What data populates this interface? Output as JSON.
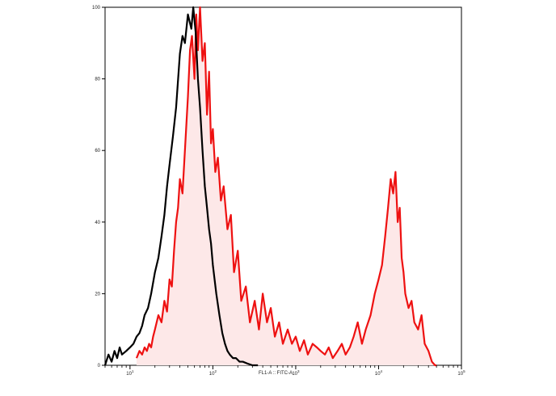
{
  "chart_data": {
    "type": "area",
    "title": "",
    "xlabel": "FL1-A :: FITC-A",
    "ylabel": "",
    "x_scale": "log",
    "xlim": [
      5,
      100000
    ],
    "ylim": [
      0,
      100
    ],
    "x_ticks": [
      {
        "value": 10,
        "base": "10",
        "exp": "1"
      },
      {
        "value": 100,
        "base": "10",
        "exp": "2"
      },
      {
        "value": 1000,
        "base": "10",
        "exp": "3"
      },
      {
        "value": 10000,
        "base": "10",
        "exp": "4"
      },
      {
        "value": 100000,
        "base": "10",
        "exp": "5"
      }
    ],
    "y_ticks": [
      0,
      20,
      40,
      60,
      80,
      100
    ],
    "grid": false,
    "series": [
      {
        "color": "#000000",
        "fill": "none",
        "x": [
          5,
          5.5,
          6,
          6.5,
          7,
          7.5,
          8,
          9,
          10,
          11,
          12,
          13,
          14,
          15,
          16.5,
          18,
          20,
          22,
          24,
          26,
          28,
          30,
          33,
          36,
          40,
          43,
          46,
          50,
          55,
          58,
          62,
          66,
          70,
          75,
          80,
          85,
          90,
          95,
          100,
          110,
          120,
          130,
          140,
          150,
          160,
          175,
          190,
          210,
          230,
          260,
          300,
          350
        ],
        "values": [
          0,
          3,
          1,
          4,
          2,
          5,
          3,
          4,
          5,
          6,
          8,
          9,
          11,
          14,
          16,
          20,
          26,
          30,
          36,
          42,
          50,
          56,
          64,
          72,
          87,
          92,
          90,
          98,
          94,
          100,
          93,
          80,
          72,
          60,
          50,
          44,
          38,
          34,
          28,
          20,
          14,
          9,
          6,
          4,
          3,
          2,
          2,
          1,
          1,
          0.5,
          0,
          0
        ]
      },
      {
        "color": "#ee1111",
        "fill": "#fde8e8",
        "x": [
          12,
          13,
          14,
          15,
          16,
          17,
          18,
          19,
          20,
          22,
          24,
          26,
          28,
          30,
          32,
          34,
          36,
          38,
          40,
          43,
          46,
          50,
          53,
          56,
          60,
          63,
          66,
          70,
          75,
          80,
          85,
          90,
          95,
          100,
          107,
          115,
          125,
          135,
          150,
          165,
          180,
          200,
          220,
          250,
          280,
          320,
          360,
          400,
          450,
          500,
          560,
          630,
          700,
          800,
          900,
          1000,
          1120,
          1260,
          1400,
          1600,
          1800,
          2000,
          2250,
          2500,
          2800,
          3200,
          3600,
          4000,
          4500,
          5000,
          5600,
          6300,
          7000,
          8000,
          9000,
          10000,
          11000,
          12000,
          13000,
          14000,
          15000,
          16000,
          17000,
          18000,
          19000,
          20000,
          21000,
          23000,
          25000,
          27000,
          30000,
          33000,
          36000,
          40000,
          44000,
          48000,
          50000
        ],
        "values": [
          2,
          4,
          3,
          5,
          4,
          6,
          5,
          8,
          10,
          14,
          12,
          18,
          15,
          24,
          22,
          32,
          40,
          44,
          52,
          48,
          60,
          75,
          88,
          92,
          80,
          98,
          88,
          100,
          85,
          90,
          70,
          82,
          62,
          66,
          54,
          58,
          46,
          50,
          38,
          42,
          26,
          32,
          18,
          22,
          12,
          18,
          10,
          20,
          12,
          16,
          8,
          12,
          6,
          10,
          6,
          8,
          4,
          7,
          3,
          6,
          5,
          4,
          3,
          5,
          2,
          4,
          6,
          3,
          5,
          8,
          12,
          6,
          10,
          14,
          20,
          24,
          28,
          36,
          44,
          52,
          48,
          54,
          40,
          44,
          30,
          26,
          20,
          16,
          18,
          12,
          10,
          14,
          6,
          4,
          1,
          0,
          0
        ]
      }
    ]
  }
}
